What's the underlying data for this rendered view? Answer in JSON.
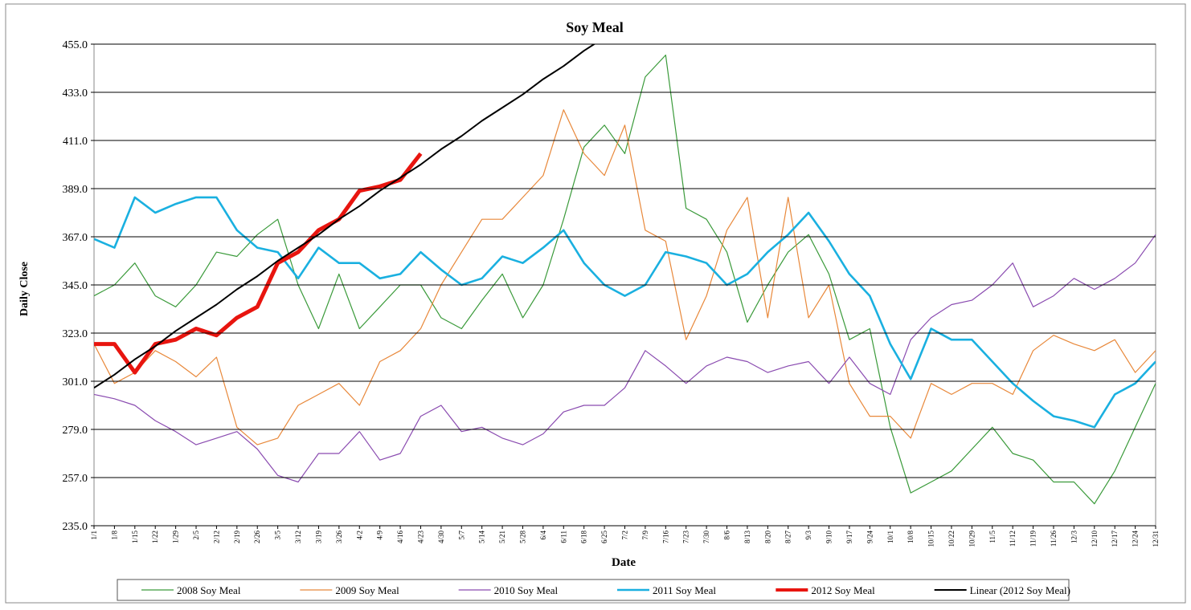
{
  "chart_data": {
    "type": "line",
    "title": "Soy Meal",
    "x_label": "Date",
    "y_label": "Daily Close",
    "categories": [
      "1/1",
      "1/8",
      "1/15",
      "1/22",
      "1/29",
      "2/5",
      "2/12",
      "2/19",
      "2/26",
      "3/5",
      "3/12",
      "3/19",
      "3/26",
      "4/2",
      "4/9",
      "4/16",
      "4/23",
      "4/30",
      "5/7",
      "5/14",
      "5/21",
      "5/28",
      "6/4",
      "6/11",
      "6/18",
      "6/25",
      "7/2",
      "7/9",
      "7/16",
      "7/23",
      "7/30",
      "8/6",
      "8/13",
      "8/20",
      "8/27",
      "9/3",
      "9/10",
      "9/17",
      "9/24",
      "10/1",
      "10/8",
      "10/15",
      "10/22",
      "10/29",
      "11/5",
      "11/12",
      "11/19",
      "11/26",
      "12/3",
      "12/10",
      "12/17",
      "12/24",
      "12/31"
    ],
    "ylim": [
      235,
      455
    ],
    "yticks": [
      {
        "value": 235,
        "label": "235.0"
      },
      {
        "value": 257,
        "label": "257.0"
      },
      {
        "value": 279,
        "label": "279.0"
      },
      {
        "value": 301,
        "label": "301.0"
      },
      {
        "value": 323,
        "label": "323.0"
      },
      {
        "value": 345,
        "label": "345.0"
      },
      {
        "value": 367,
        "label": "367.0"
      },
      {
        "value": 389,
        "label": "389.0"
      },
      {
        "value": 411,
        "label": "411.0"
      },
      {
        "value": 433,
        "label": "433.0"
      },
      {
        "value": 455,
        "label": "455.0"
      }
    ],
    "grid": true,
    "legend": "bottom",
    "series": [
      {
        "name": "2008 Soy Meal",
        "color": "#3a9a3a",
        "width": 1.2,
        "values": [
          340,
          345,
          355,
          340,
          335,
          345,
          360,
          358,
          368,
          375,
          345,
          325,
          350,
          325,
          335,
          345,
          345,
          330,
          325,
          338,
          350,
          330,
          345,
          375,
          408,
          418,
          405,
          440,
          450,
          380,
          375,
          360,
          328,
          345,
          360,
          368,
          350,
          320,
          325,
          280,
          250,
          255,
          260,
          270,
          280,
          268,
          265,
          255,
          255,
          245,
          260,
          280,
          300
        ]
      },
      {
        "name": "2009 Soy Meal",
        "color": "#e8883a",
        "width": 1.2,
        "values": [
          318,
          300,
          305,
          315,
          310,
          303,
          312,
          280,
          272,
          275,
          290,
          295,
          300,
          290,
          310,
          315,
          325,
          345,
          360,
          375,
          375,
          385,
          395,
          425,
          405,
          395,
          418,
          370,
          365,
          320,
          340,
          370,
          385,
          330,
          385,
          330,
          345,
          300,
          285,
          285,
          275,
          300,
          295,
          300,
          300,
          295,
          315,
          322,
          318,
          315,
          320,
          305,
          315
        ]
      },
      {
        "name": "2010 Soy Meal",
        "color": "#8a4bb0",
        "width": 1.2,
        "values": [
          295,
          293,
          290,
          283,
          278,
          272,
          275,
          278,
          270,
          258,
          255,
          268,
          268,
          278,
          265,
          268,
          285,
          290,
          278,
          280,
          275,
          272,
          277,
          287,
          290,
          290,
          298,
          315,
          308,
          300,
          308,
          312,
          310,
          305,
          308,
          310,
          300,
          312,
          300,
          295,
          320,
          330,
          336,
          338,
          345,
          355,
          335,
          340,
          348,
          343,
          348,
          355,
          368
        ]
      },
      {
        "name": "2011 Soy Meal",
        "color": "#1ab0e0",
        "width": 2.6,
        "values": [
          366,
          362,
          385,
          378,
          382,
          385,
          385,
          370,
          362,
          360,
          348,
          362,
          355,
          355,
          348,
          350,
          360,
          352,
          345,
          348,
          358,
          355,
          362,
          370,
          355,
          345,
          340,
          345,
          360,
          358,
          355,
          345,
          350,
          360,
          368,
          378,
          365,
          350,
          340,
          318,
          302,
          325,
          320,
          320,
          310,
          300,
          292,
          285,
          283,
          280,
          295,
          300,
          310
        ]
      },
      {
        "name": "2012 Soy Meal",
        "color": "#e8150f",
        "width": 5,
        "values": [
          318,
          318,
          305,
          318,
          320,
          325,
          322,
          330,
          335,
          355,
          360,
          370,
          375,
          388,
          390,
          393,
          405,
          null,
          null,
          null,
          null,
          null,
          null,
          null,
          null,
          null,
          null,
          null,
          null,
          null,
          null,
          null,
          null,
          null,
          null,
          null,
          null,
          null,
          null,
          null,
          null,
          null,
          null,
          null,
          null,
          null,
          null,
          null,
          null,
          null,
          null,
          null,
          null
        ]
      },
      {
        "name": "Linear (2012 Soy Meal)",
        "color": "#000000",
        "width": 2,
        "values": [
          298,
          304,
          311,
          317,
          324,
          330,
          336,
          343,
          349,
          356,
          362,
          368,
          375,
          381,
          388,
          394,
          400,
          407,
          413,
          420,
          426,
          432,
          439,
          445,
          452,
          458,
          null,
          null,
          null,
          null,
          null,
          null,
          null,
          null,
          null,
          null,
          null,
          null,
          null,
          null,
          null,
          null,
          null,
          null,
          null,
          null,
          null,
          null,
          null,
          null,
          null,
          null,
          null
        ]
      }
    ]
  }
}
